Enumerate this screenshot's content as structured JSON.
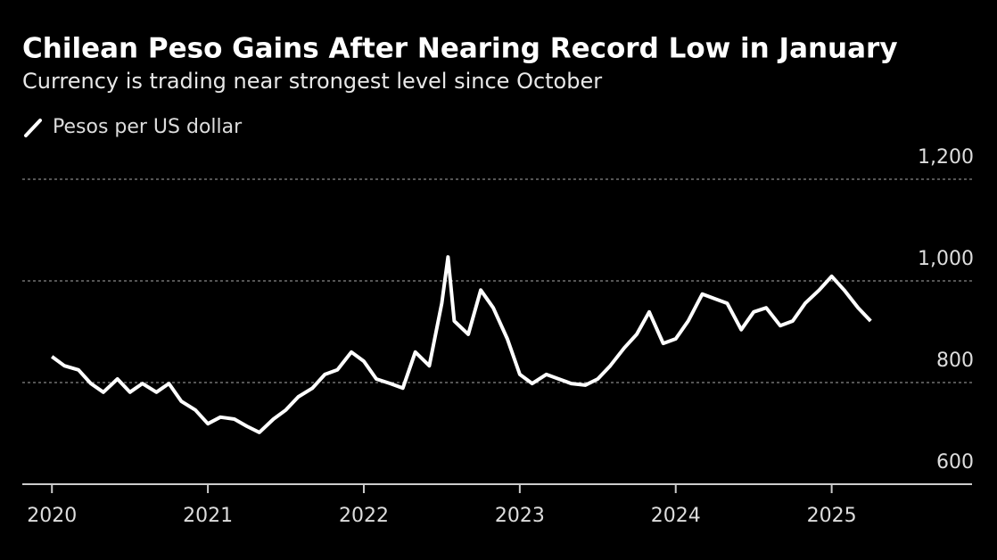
{
  "chart_data": {
    "type": "line",
    "title": "Chilean Peso Gains After Nearing Record Low in January",
    "subtitle": "Currency is trading near strongest level since October",
    "x": [
      2020.0,
      2020.08,
      2020.17,
      2020.25,
      2020.33,
      2020.42,
      2020.5,
      2020.58,
      2020.67,
      2020.75,
      2020.83,
      2020.92,
      2021.0,
      2021.08,
      2021.17,
      2021.25,
      2021.33,
      2021.42,
      2021.5,
      2021.58,
      2021.67,
      2021.75,
      2021.83,
      2021.92,
      2022.0,
      2022.08,
      2022.17,
      2022.25,
      2022.33,
      2022.42,
      2022.5,
      2022.54,
      2022.58,
      2022.67,
      2022.75,
      2022.83,
      2022.92,
      2023.0,
      2023.08,
      2023.17,
      2023.25,
      2023.33,
      2023.42,
      2023.5,
      2023.58,
      2023.67,
      2023.75,
      2023.83,
      2023.92,
      2024.0,
      2024.08,
      2024.17,
      2024.25,
      2024.33,
      2024.42,
      2024.5,
      2024.58,
      2024.67,
      2024.75,
      2024.83,
      2024.92,
      2025.0,
      2025.08,
      2025.17,
      2025.25
    ],
    "series": [
      {
        "name": "Pesos per US dollar",
        "color": "#ffffff",
        "values": [
          851,
          833,
          825,
          798,
          781,
          807,
          781,
          798,
          781,
          798,
          763,
          746,
          719,
          732,
          728,
          714,
          702,
          728,
          746,
          772,
          789,
          816,
          825,
          860,
          842,
          807,
          798,
          789,
          860,
          833,
          956,
          1047,
          921,
          895,
          982,
          947,
          886,
          816,
          798,
          816,
          807,
          798,
          795,
          807,
          833,
          868,
          895,
          939,
          877,
          886,
          921,
          974,
          965,
          956,
          904,
          939,
          947,
          912,
          921,
          956,
          982,
          1009,
          982,
          947,
          921
        ]
      }
    ],
    "xlim": [
      2019.81,
      2025.9
    ],
    "xticks": [
      2020,
      2021,
      2022,
      2023,
      2024,
      2025
    ],
    "ylim": [
      600,
      1200
    ],
    "yticks": [
      600,
      800,
      {
        "value": 1000,
        "label": "1,000"
      },
      {
        "value": 1200,
        "label": "1,200"
      }
    ],
    "grid": true
  }
}
